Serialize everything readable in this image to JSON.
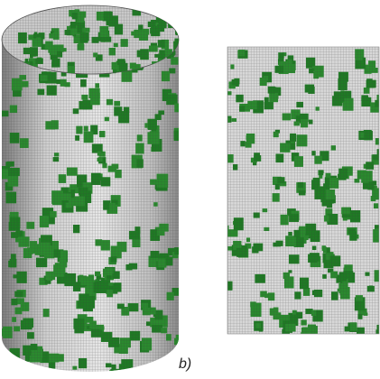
{
  "caption": "b)"
}
